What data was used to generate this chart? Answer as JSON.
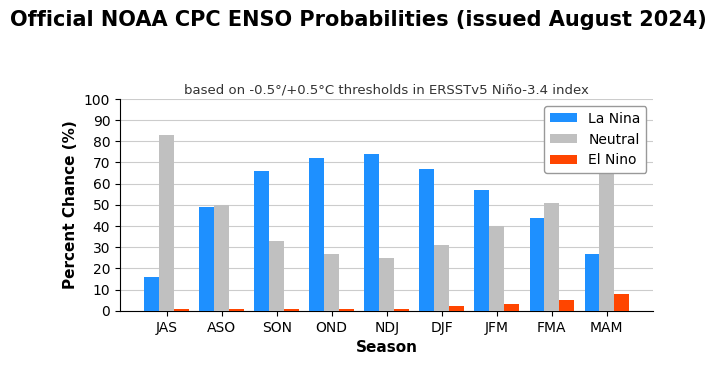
{
  "title": "Official NOAA CPC ENSO Probabilities (issued August 2024)",
  "subtitle": "based on -0.5°/+0.5°C thresholds in ERSSTv5 Niño-3.4 index",
  "seasons": [
    "JAS",
    "ASO",
    "SON",
    "OND",
    "NDJ",
    "DJF",
    "JFM",
    "FMA",
    "MAM"
  ],
  "la_nina": [
    16,
    49,
    66,
    72,
    74,
    67,
    57,
    44,
    27
  ],
  "neutral": [
    83,
    50,
    33,
    27,
    25,
    31,
    40,
    51,
    65
  ],
  "el_nino": [
    1,
    1,
    1,
    1,
    1,
    2,
    3,
    5,
    8
  ],
  "colors": {
    "la_nina": "#1E90FF",
    "neutral": "#C0C0C0",
    "el_nino": "#FF4500"
  },
  "xlabel": "Season",
  "ylabel": "Percent Chance (%)",
  "ylim": [
    0,
    100
  ],
  "yticks": [
    0,
    10,
    20,
    30,
    40,
    50,
    60,
    70,
    80,
    90,
    100
  ],
  "legend_labels": [
    "La Nina",
    "Neutral",
    "El Nino"
  ],
  "title_fontsize": 15,
  "subtitle_fontsize": 9.5,
  "label_fontsize": 11,
  "tick_fontsize": 10,
  "legend_fontsize": 10,
  "bar_width": 0.27,
  "background_color": "#FFFFFF",
  "grid_color": "#CCCCCC"
}
